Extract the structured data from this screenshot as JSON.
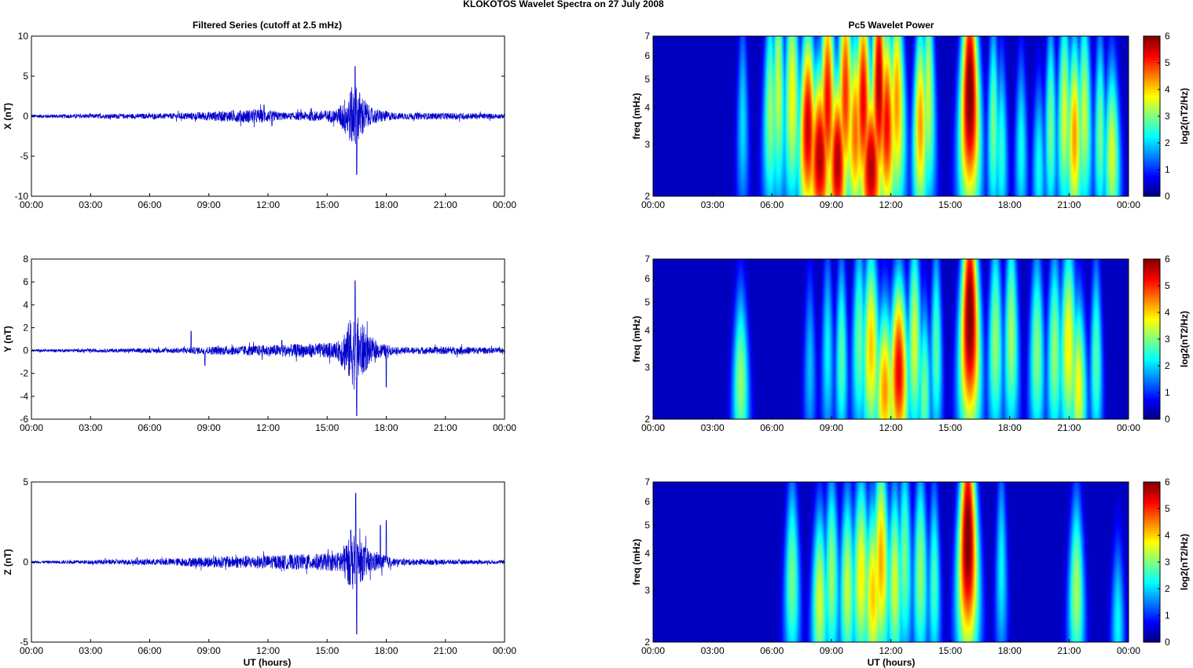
{
  "title": "KLOKOTOS Wavelet Spectra on 27 July      2008",
  "left_title": "Filtered Series (cutoff at 2.5 mHz)",
  "right_title": "Pc5 Wavelet Power",
  "xlabel": "UT (hours)",
  "x_ticks": [
    "00:00",
    "03:00",
    "06:00",
    "09:00",
    "12:00",
    "15:00",
    "18:00",
    "21:00",
    "00:00"
  ],
  "colors": {
    "trace": "#0000cc",
    "axis": "#000000"
  },
  "chart_data": [
    {
      "type": "line",
      "panel": "series-x",
      "ylabel": "X (nT)",
      "xlim": [
        0,
        24
      ],
      "ylim": [
        -10,
        10
      ],
      "yticks": [
        -10,
        -5,
        0,
        5,
        10
      ],
      "noise_envelope": [
        [
          0,
          0.3
        ],
        [
          7,
          0.5
        ],
        [
          9,
          0.8
        ],
        [
          11.5,
          1.3
        ],
        [
          13,
          0.6
        ],
        [
          15.5,
          1.2
        ],
        [
          16.4,
          6.0
        ],
        [
          17.2,
          1.5
        ],
        [
          18.5,
          0.6
        ],
        [
          22,
          0.6
        ],
        [
          24,
          0.4
        ]
      ],
      "peaks": [
        [
          16.42,
          6.2
        ],
        [
          16.5,
          -7.3
        ],
        [
          11.8,
          1.4
        ],
        [
          12.2,
          -1.2
        ]
      ]
    },
    {
      "type": "line",
      "panel": "series-y",
      "ylabel": "Y (nT)",
      "xlim": [
        0,
        24
      ],
      "ylim": [
        -6,
        8
      ],
      "yticks": [
        -6,
        -4,
        -2,
        0,
        2,
        4,
        6,
        8
      ],
      "noise_envelope": [
        [
          0,
          0.15
        ],
        [
          7,
          0.3
        ],
        [
          9,
          0.5
        ],
        [
          12,
          0.7
        ],
        [
          15.5,
          1.0
        ],
        [
          16.4,
          5.0
        ],
        [
          17.3,
          1.2
        ],
        [
          18.5,
          0.4
        ],
        [
          22,
          0.5
        ],
        [
          24,
          0.3
        ]
      ],
      "peaks": [
        [
          16.42,
          6.1
        ],
        [
          16.5,
          -5.7
        ],
        [
          8.1,
          1.7
        ],
        [
          8.8,
          -1.3
        ],
        [
          18.0,
          -3.2
        ],
        [
          12.7,
          0.9
        ]
      ]
    },
    {
      "type": "line",
      "panel": "series-z",
      "ylabel": "Z (nT)",
      "xlim": [
        0,
        24
      ],
      "ylim": [
        -5,
        5
      ],
      "yticks": [
        -5,
        0,
        5
      ],
      "noise_envelope": [
        [
          0,
          0.1
        ],
        [
          7,
          0.3
        ],
        [
          9,
          0.5
        ],
        [
          12,
          0.6
        ],
        [
          15.5,
          0.8
        ],
        [
          16.3,
          2.5
        ],
        [
          17.2,
          1.0
        ],
        [
          18.5,
          0.3
        ],
        [
          22,
          0.2
        ],
        [
          24,
          0.15
        ]
      ],
      "peaks": [
        [
          16.45,
          4.3
        ],
        [
          16.5,
          -4.5
        ],
        [
          17.7,
          2.3
        ],
        [
          18.0,
          2.6
        ],
        [
          16.2,
          2.0
        ]
      ]
    },
    {
      "type": "heatmap",
      "panel": "wavelet-x",
      "ylabel": "freq (mHz)",
      "colorbar_label": "log2(nT2/Hz)",
      "xlim": [
        0,
        24
      ],
      "ylim": [
        2,
        7
      ],
      "yticks": [
        2,
        3,
        4,
        5,
        6,
        7
      ],
      "clim": [
        0,
        6
      ],
      "cticks": [
        0,
        1,
        2,
        3,
        4,
        5,
        6
      ],
      "blobs": [
        [
          4.5,
          3.6,
          2.0,
          0.2
        ],
        [
          5.9,
          3.9,
          3.2,
          0.25
        ],
        [
          6.3,
          4.8,
          3.5,
          0.25
        ],
        [
          7.0,
          4.5,
          3.8,
          0.3
        ],
        [
          7.8,
          3.4,
          5.8,
          0.3
        ],
        [
          8.4,
          2.7,
          6.0,
          0.35
        ],
        [
          8.8,
          4.2,
          5.5,
          0.3
        ],
        [
          9.3,
          2.6,
          6.0,
          0.3
        ],
        [
          9.7,
          4.5,
          5.2,
          0.3
        ],
        [
          10.2,
          3.3,
          4.8,
          0.3
        ],
        [
          10.6,
          4.2,
          5.6,
          0.3
        ],
        [
          11.0,
          2.5,
          6.0,
          0.35
        ],
        [
          11.4,
          4.8,
          6.0,
          0.3
        ],
        [
          11.8,
          3.5,
          5.5,
          0.3
        ],
        [
          12.3,
          4.2,
          4.5,
          0.3
        ],
        [
          13.5,
          3.5,
          4.5,
          0.25
        ],
        [
          13.9,
          4.5,
          3.5,
          0.25
        ],
        [
          16.0,
          4.5,
          6.5,
          0.35
        ],
        [
          17.2,
          3.5,
          3.0,
          0.2
        ],
        [
          17.6,
          2.9,
          2.5,
          0.2
        ],
        [
          18.6,
          2.9,
          2.3,
          0.2
        ],
        [
          19.5,
          2.5,
          2.3,
          0.2
        ],
        [
          20.1,
          3.5,
          3.0,
          0.2
        ],
        [
          20.8,
          3.8,
          3.6,
          0.25
        ],
        [
          21.3,
          3.2,
          4.5,
          0.25
        ],
        [
          21.8,
          3.8,
          3.5,
          0.25
        ],
        [
          22.6,
          3.3,
          3.0,
          0.2
        ],
        [
          23.2,
          2.8,
          3.6,
          0.25
        ]
      ]
    },
    {
      "type": "heatmap",
      "panel": "wavelet-y",
      "ylabel": "freq (mHz)",
      "colorbar_label": "log2(nT2/Hz)",
      "xlim": [
        0,
        24
      ],
      "ylim": [
        2,
        7
      ],
      "yticks": [
        2,
        3,
        4,
        5,
        6,
        7
      ],
      "clim": [
        0,
        6
      ],
      "cticks": [
        0,
        1,
        2,
        3,
        4,
        5,
        6
      ],
      "blobs": [
        [
          4.4,
          2.7,
          3.2,
          0.25
        ],
        [
          7.9,
          3.0,
          1.8,
          0.2
        ],
        [
          8.8,
          3.4,
          2.2,
          0.2
        ],
        [
          9.5,
          3.3,
          2.8,
          0.2
        ],
        [
          10.4,
          3.7,
          2.9,
          0.25
        ],
        [
          11.0,
          3.5,
          4.2,
          0.3
        ],
        [
          11.7,
          2.5,
          4.5,
          0.3
        ],
        [
          12.4,
          2.9,
          5.6,
          0.3
        ],
        [
          13.2,
          3.7,
          3.6,
          0.25
        ],
        [
          13.7,
          2.5,
          3.0,
          0.2
        ],
        [
          14.3,
          3.5,
          2.8,
          0.2
        ],
        [
          16.0,
          4.5,
          6.5,
          0.35
        ],
        [
          17.3,
          3.7,
          3.2,
          0.25
        ],
        [
          18.1,
          3.9,
          3.3,
          0.25
        ],
        [
          19.4,
          3.4,
          3.1,
          0.25
        ],
        [
          20.3,
          3.4,
          3.2,
          0.25
        ],
        [
          21.0,
          3.6,
          3.9,
          0.3
        ],
        [
          21.5,
          2.6,
          3.8,
          0.25
        ],
        [
          22.4,
          3.2,
          2.8,
          0.2
        ]
      ]
    },
    {
      "type": "heatmap",
      "panel": "wavelet-z",
      "ylabel": "freq (mHz)",
      "colorbar_label": "log2(nT2/Hz)",
      "xlim": [
        0,
        24
      ],
      "ylim": [
        2,
        7
      ],
      "yticks": [
        2,
        3,
        4,
        5,
        6,
        7
      ],
      "clim": [
        0,
        6
      ],
      "cticks": [
        0,
        1,
        2,
        3,
        4,
        5,
        6
      ],
      "blobs": [
        [
          7.0,
          3.3,
          3.0,
          0.25
        ],
        [
          8.4,
          2.8,
          3.6,
          0.25
        ],
        [
          9.0,
          3.4,
          3.2,
          0.25
        ],
        [
          9.8,
          3.1,
          3.5,
          0.25
        ],
        [
          10.5,
          3.4,
          3.9,
          0.3
        ],
        [
          11.1,
          2.9,
          4.2,
          0.3
        ],
        [
          11.5,
          3.8,
          4.4,
          0.3
        ],
        [
          12.2,
          3.2,
          3.6,
          0.25
        ],
        [
          12.7,
          3.8,
          3.0,
          0.25
        ],
        [
          13.5,
          3.5,
          3.2,
          0.25
        ],
        [
          14.2,
          3.2,
          2.7,
          0.2
        ],
        [
          15.9,
          4.5,
          6.5,
          0.35
        ],
        [
          17.6,
          3.6,
          2.2,
          0.2
        ],
        [
          21.4,
          3.0,
          3.3,
          0.25
        ],
        [
          23.5,
          2.3,
          2.2,
          0.2
        ]
      ]
    }
  ]
}
